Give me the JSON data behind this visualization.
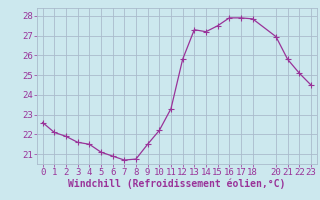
{
  "x": [
    0,
    1,
    2,
    3,
    4,
    5,
    6,
    7,
    8,
    9,
    10,
    11,
    12,
    13,
    14,
    15,
    16,
    17,
    18,
    20,
    21,
    22,
    23
  ],
  "y": [
    22.6,
    22.1,
    21.9,
    21.6,
    21.5,
    21.1,
    20.9,
    20.7,
    20.75,
    21.5,
    22.2,
    23.3,
    25.8,
    27.3,
    27.2,
    27.5,
    27.9,
    27.9,
    27.85,
    26.95,
    25.8,
    25.1,
    24.5
  ],
  "line_color": "#993399",
  "marker_color": "#993399",
  "bg_color": "#cce8ee",
  "grid_color": "#aabbcc",
  "xlabel": "Windchill (Refroidissement éolien,°C)",
  "xlabel_color": "#993399",
  "tick_color": "#993399",
  "ylim": [
    20.5,
    28.4
  ],
  "yticks": [
    21,
    22,
    23,
    24,
    25,
    26,
    27,
    28
  ],
  "xticks": [
    0,
    1,
    2,
    3,
    4,
    5,
    6,
    7,
    8,
    9,
    10,
    11,
    12,
    13,
    14,
    15,
    16,
    17,
    18,
    20,
    21,
    22,
    23
  ],
  "font_size": 6.5,
  "xlabel_fontsize": 7.0,
  "marker_size": 2.2,
  "linewidth": 0.9
}
